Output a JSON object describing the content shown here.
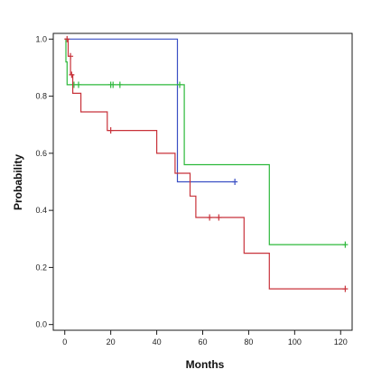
{
  "chart_data": {
    "type": "line",
    "subtype": "kaplan-meier-step",
    "title": "",
    "xlabel": "Months",
    "ylabel": "Probability",
    "xlim": [
      -5,
      125
    ],
    "ylim": [
      -0.02,
      1.02
    ],
    "x_ticks": [
      0,
      20,
      40,
      60,
      80,
      100,
      120
    ],
    "y_ticks": [
      0.0,
      0.2,
      0.4,
      0.6,
      0.8,
      1.0
    ],
    "y_tick_labels": [
      "0.0",
      "0.2",
      "0.4",
      "0.6",
      "0.8",
      "1.0"
    ],
    "grid": false,
    "legend": "none",
    "series": [
      {
        "color": "#3a4fc4",
        "steps": [
          [
            0,
            1.0
          ],
          [
            49,
            1.0
          ],
          [
            49,
            0.5
          ],
          [
            74,
            0.5
          ]
        ],
        "censored": [
          [
            74,
            0.5
          ]
        ]
      },
      {
        "color": "#2cb83a",
        "steps": [
          [
            0,
            1.0
          ],
          [
            0.5,
            1.0
          ],
          [
            0.5,
            0.92
          ],
          [
            1,
            0.92
          ],
          [
            1,
            0.84
          ],
          [
            52,
            0.84
          ],
          [
            52,
            0.56
          ],
          [
            89,
            0.56
          ],
          [
            89,
            0.28
          ],
          [
            122,
            0.28
          ]
        ],
        "censored": [
          [
            4,
            0.84
          ],
          [
            6,
            0.84
          ],
          [
            20,
            0.84
          ],
          [
            21,
            0.84
          ],
          [
            24,
            0.84
          ],
          [
            50,
            0.84
          ],
          [
            122,
            0.28
          ]
        ]
      },
      {
        "color": "#c8323a",
        "steps": [
          [
            0,
            1.0
          ],
          [
            1.5,
            1.0
          ],
          [
            1.5,
            0.94
          ],
          [
            2.5,
            0.94
          ],
          [
            2.5,
            0.875
          ],
          [
            3.5,
            0.875
          ],
          [
            3.5,
            0.81
          ],
          [
            7,
            0.81
          ],
          [
            7,
            0.745
          ],
          [
            18.5,
            0.745
          ],
          [
            18.5,
            0.68
          ],
          [
            40,
            0.68
          ],
          [
            40,
            0.6
          ],
          [
            48,
            0.6
          ],
          [
            48,
            0.53
          ],
          [
            54.5,
            0.53
          ],
          [
            54.5,
            0.45
          ],
          [
            57,
            0.45
          ],
          [
            57,
            0.375
          ],
          [
            78,
            0.375
          ],
          [
            78,
            0.25
          ],
          [
            89,
            0.25
          ],
          [
            89,
            0.125
          ],
          [
            122,
            0.125
          ]
        ],
        "censored": [
          [
            1,
            1.0
          ],
          [
            2.5,
            0.94
          ],
          [
            3,
            0.875
          ],
          [
            20,
            0.68
          ],
          [
            63,
            0.375
          ],
          [
            67,
            0.375
          ],
          [
            122,
            0.125
          ]
        ]
      }
    ]
  }
}
